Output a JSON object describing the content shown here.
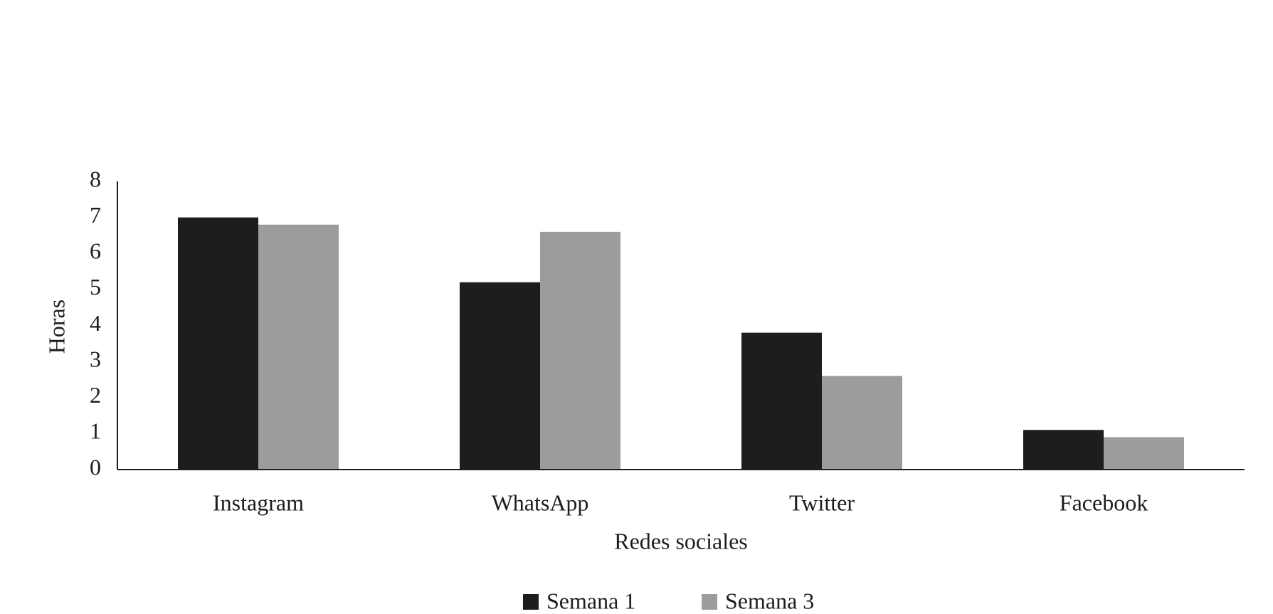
{
  "chart_data": {
    "type": "bar",
    "y_label": "Horas",
    "x_label": "Redes sociales",
    "categories": [
      "Instagram",
      "WhatsApp",
      "Twitter",
      "Facebook"
    ],
    "series": [
      {
        "name": "Semana 1",
        "color": "#1d1d1b",
        "values": [
          7.0,
          5.2,
          3.8,
          1.1
        ]
      },
      {
        "name": "Semana 3",
        "color": "#9d9c9c",
        "values": [
          6.8,
          6.6,
          2.6,
          0.9
        ]
      }
    ],
    "ylim": [
      0,
      8
    ],
    "yticks": [
      0,
      1,
      2,
      3,
      4,
      5,
      6,
      7,
      8
    ],
    "grid": false,
    "legend": "bottom"
  }
}
